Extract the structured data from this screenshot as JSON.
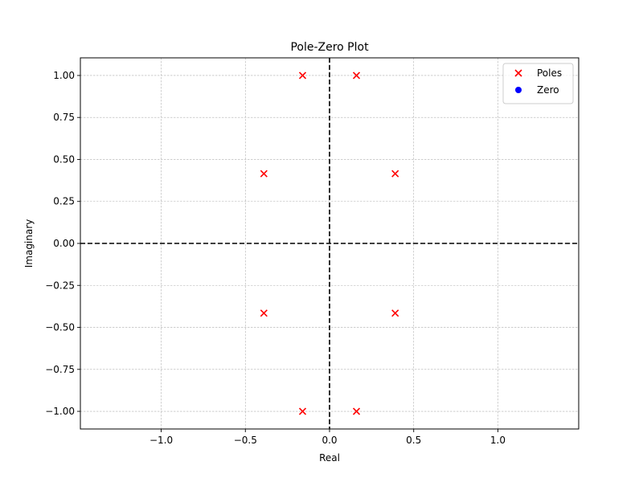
{
  "chart_data": {
    "type": "scatter",
    "title": "Pole-Zero Plot",
    "xlabel": "Real",
    "ylabel": "Imaginary",
    "xlim": [
      -1.48,
      1.48
    ],
    "ylim": [
      -1.105,
      1.105
    ],
    "x_ticks": [
      -1.0,
      -0.5,
      0.0,
      0.5,
      1.0
    ],
    "x_tick_labels": [
      "−1.0",
      "−0.5",
      "0.0",
      "0.5",
      "1.0"
    ],
    "y_ticks": [
      1.0,
      0.75,
      0.5,
      0.25,
      0.0,
      -0.25,
      -0.5,
      -0.75,
      -1.0
    ],
    "y_tick_labels": [
      "1.00",
      "0.75",
      "0.50",
      "0.25",
      "0.00",
      "−0.25",
      "−0.50",
      "−0.75",
      "−1.00"
    ],
    "grid": true,
    "reference_lines": {
      "x": 0,
      "y": 0,
      "style": "dashed",
      "color": "#000000"
    },
    "legend_position": "top-right",
    "series": [
      {
        "name": "Poles",
        "marker": "x",
        "color": "#ff0000",
        "points": [
          {
            "x": -0.16,
            "y": 1.0
          },
          {
            "x": 0.16,
            "y": 1.0
          },
          {
            "x": -0.39,
            "y": 0.415
          },
          {
            "x": 0.39,
            "y": 0.415
          },
          {
            "x": -0.39,
            "y": -0.415
          },
          {
            "x": 0.39,
            "y": -0.415
          },
          {
            "x": -0.16,
            "y": -1.0
          },
          {
            "x": 0.16,
            "y": -1.0
          }
        ]
      },
      {
        "name": "Zero",
        "marker": "o",
        "color": "#0000ff",
        "points": []
      }
    ]
  }
}
